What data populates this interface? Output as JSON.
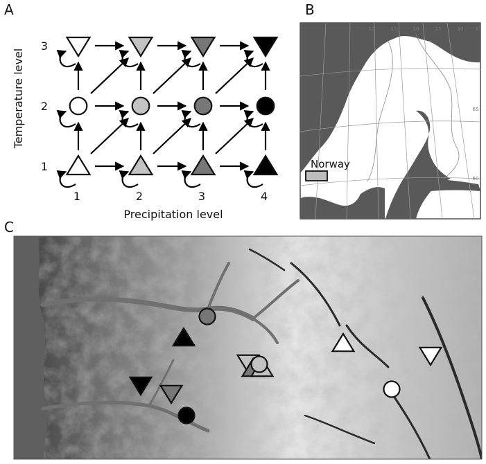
{
  "panels": {
    "a": "A",
    "b": "B",
    "c": "C"
  },
  "panel_a": {
    "x_axis_label": "Precipitation level",
    "y_axis_label": "Temperature level",
    "x_ticks": [
      "1",
      "2",
      "3",
      "4"
    ],
    "y_ticks": [
      "1",
      "2",
      "3"
    ],
    "precipitation_fills": [
      "#ffffff",
      "#c3c3c3",
      "#777777",
      "#000000"
    ],
    "temperature_symbols": [
      "triangle-up",
      "circle",
      "triangle-down"
    ]
  },
  "panel_b": {
    "country_label": "Norway",
    "lat_labels": [
      "65",
      "60"
    ],
    "lon_labels": [
      "10",
      "15",
      "20",
      "25",
      "30",
      "35"
    ]
  },
  "panel_c": {
    "sites": [
      {
        "symbol": "circle",
        "precipitation_level": 3,
        "temperature_level": 2
      },
      {
        "symbol": "triangle-up",
        "precipitation_level": 4,
        "temperature_level": 1
      },
      {
        "symbol": "triangle-down",
        "precipitation_level": 4,
        "temperature_level": 3
      },
      {
        "symbol": "triangle-down",
        "precipitation_level": 3,
        "temperature_level": 3
      },
      {
        "symbol": "circle",
        "precipitation_level": 4,
        "temperature_level": 2
      },
      {
        "symbol": "triangle-down",
        "precipitation_level": 2,
        "temperature_level": 3
      },
      {
        "symbol": "triangle-up",
        "precipitation_level": 3,
        "temperature_level": 1
      },
      {
        "symbol": "triangle-up",
        "precipitation_level": 2,
        "temperature_level": 1
      },
      {
        "symbol": "circle",
        "precipitation_level": 2,
        "temperature_level": 2
      },
      {
        "symbol": "triangle-up",
        "precipitation_level": 1,
        "temperature_level": 1
      },
      {
        "symbol": "triangle-down",
        "precipitation_level": 1,
        "temperature_level": 3
      },
      {
        "symbol": "circle",
        "precipitation_level": 1,
        "temperature_level": 2
      }
    ]
  }
}
